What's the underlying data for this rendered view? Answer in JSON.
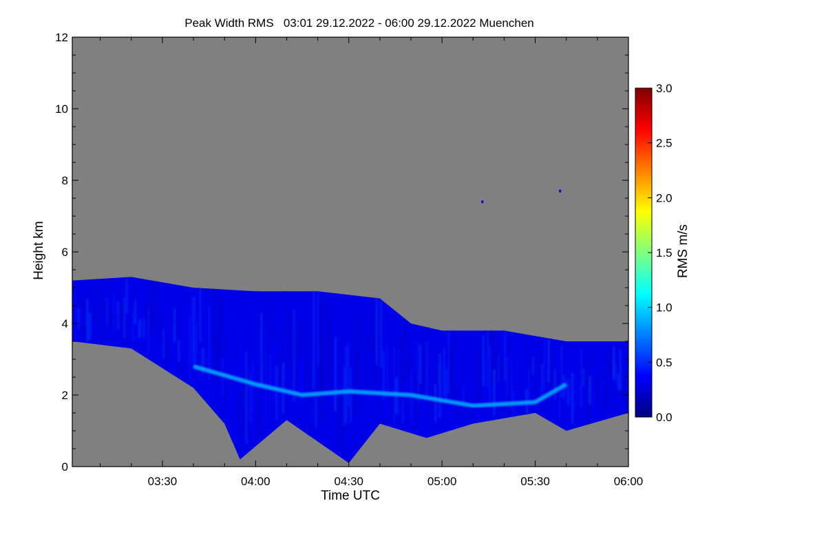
{
  "chart_data": {
    "type": "heatmap",
    "title": "Peak Width RMS   03:01 29.12.2022 - 06:00 29.12.2022 Muenchen",
    "xlabel": "Time UTC",
    "ylabel": "Height km",
    "x_range": [
      "03:01",
      "06:00"
    ],
    "x_ticks": [
      "03:30",
      "04:00",
      "04:30",
      "05:00",
      "05:30",
      "06:00"
    ],
    "y_range": [
      0,
      12
    ],
    "y_ticks": [
      "0",
      "2",
      "4",
      "6",
      "8",
      "10",
      "12"
    ],
    "no_data_color": "#808080",
    "colorbar": {
      "label": "RMS m/s",
      "range": [
        0.0,
        3.0
      ],
      "ticks": [
        "0.0",
        "0.5",
        "1.0",
        "1.5",
        "2.0",
        "2.5",
        "3.0"
      ],
      "colors": [
        "#000080",
        "#0000ff",
        "#0080ff",
        "#00ffff",
        "#80ff80",
        "#ffff00",
        "#ff8000",
        "#ff0000",
        "#800000"
      ]
    },
    "echo_layer": {
      "typical_rms": 0.3,
      "upper_boundary": [
        {
          "time": "03:01",
          "height_km": 5.2
        },
        {
          "time": "03:20",
          "height_km": 5.3
        },
        {
          "time": "03:40",
          "height_km": 5.0
        },
        {
          "time": "04:00",
          "height_km": 4.9
        },
        {
          "time": "04:20",
          "height_km": 4.9
        },
        {
          "time": "04:40",
          "height_km": 4.7
        },
        {
          "time": "04:50",
          "height_km": 4.0
        },
        {
          "time": "05:00",
          "height_km": 3.8
        },
        {
          "time": "05:20",
          "height_km": 3.8
        },
        {
          "time": "05:40",
          "height_km": 3.5
        },
        {
          "time": "06:00",
          "height_km": 3.5
        }
      ],
      "lower_boundary": [
        {
          "time": "03:01",
          "height_km": 3.5
        },
        {
          "time": "03:20",
          "height_km": 3.3
        },
        {
          "time": "03:40",
          "height_km": 2.2
        },
        {
          "time": "03:50",
          "height_km": 1.2
        },
        {
          "time": "03:55",
          "height_km": 0.2
        },
        {
          "time": "04:10",
          "height_km": 1.3
        },
        {
          "time": "04:30",
          "height_km": 0.1
        },
        {
          "time": "04:40",
          "height_km": 1.2
        },
        {
          "time": "04:55",
          "height_km": 0.8
        },
        {
          "time": "05:10",
          "height_km": 1.2
        },
        {
          "time": "05:30",
          "height_km": 1.5
        },
        {
          "time": "05:40",
          "height_km": 1.0
        },
        {
          "time": "06:00",
          "height_km": 1.5
        }
      ]
    },
    "enhanced_band": {
      "typical_rms": 0.9,
      "points": [
        {
          "time": "03:40",
          "height_km": 2.8
        },
        {
          "time": "04:00",
          "height_km": 2.3
        },
        {
          "time": "04:15",
          "height_km": 2.0
        },
        {
          "time": "04:30",
          "height_km": 2.1
        },
        {
          "time": "04:50",
          "height_km": 2.0
        },
        {
          "time": "05:10",
          "height_km": 1.7
        },
        {
          "time": "05:30",
          "height_km": 1.8
        },
        {
          "time": "05:40",
          "height_km": 2.3
        }
      ]
    },
    "isolated_echoes": [
      {
        "time": "05:13",
        "height_km": 7.4
      },
      {
        "time": "05:38",
        "height_km": 7.7
      }
    ]
  }
}
